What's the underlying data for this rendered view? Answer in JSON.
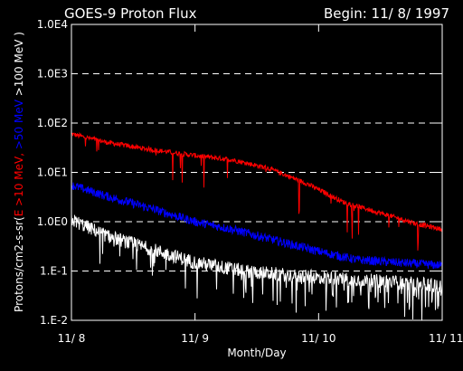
{
  "chart_data": {
    "type": "line",
    "title": "GOES-9 Proton Flux",
    "title_right": "Begin: 11/ 8/ 1997",
    "xlabel": "Month/Day",
    "ylabel_parts": [
      {
        "text": "Protons/cm2-s-sr(",
        "color": "#ffffff"
      },
      {
        "text": "E >10 MeV, ",
        "color": "#ff0000"
      },
      {
        "text": ">50 MeV ",
        "color": "#0000ff"
      },
      {
        "text": ">100 MeV )",
        "color": "#ffffff"
      }
    ],
    "y_scale": "log",
    "ylim": [
      0.01,
      10000
    ],
    "y_ticks": [
      {
        "value": 10000,
        "label": "1.0E4"
      },
      {
        "value": 1000,
        "label": "1.0E3"
      },
      {
        "value": 100,
        "label": "1.0E2"
      },
      {
        "value": 10,
        "label": "1.0E1"
      },
      {
        "value": 1,
        "label": "1.0E0"
      },
      {
        "value": 0.1,
        "label": "1.E-1"
      },
      {
        "value": 0.01,
        "label": "1.E-2"
      }
    ],
    "grid": "dashed horizontal at each decade",
    "x_range_days": [
      0,
      3
    ],
    "x_ticks": [
      {
        "value": 0,
        "label": "11/ 8"
      },
      {
        "value": 1,
        "label": "11/ 9"
      },
      {
        "value": 2,
        "label": "11/ 10"
      },
      {
        "value": 3,
        "label": "11/ 11"
      }
    ],
    "series": [
      {
        "key": "gt10",
        "color": "#ff0000",
        "noise": 0.05,
        "dips": 0.04,
        "points": [
          [
            0,
            60
          ],
          [
            0.3,
            40
          ],
          [
            0.6,
            30
          ],
          [
            1.0,
            22
          ],
          [
            1.3,
            18
          ],
          [
            1.6,
            12
          ],
          [
            1.9,
            6
          ],
          [
            2.2,
            2.5
          ],
          [
            2.5,
            1.5
          ],
          [
            2.8,
            0.9
          ],
          [
            3.0,
            0.7
          ]
        ]
      },
      {
        "key": "gt50",
        "color": "#0000ff",
        "noise": 0.09,
        "dips": 0.0,
        "points": [
          [
            0,
            5.5
          ],
          [
            0.3,
            3.2
          ],
          [
            0.6,
            2.0
          ],
          [
            1.0,
            1.0
          ],
          [
            1.3,
            0.7
          ],
          [
            1.6,
            0.45
          ],
          [
            2.0,
            0.25
          ],
          [
            2.3,
            0.17
          ],
          [
            2.6,
            0.15
          ],
          [
            3.0,
            0.13
          ]
        ]
      },
      {
        "key": "gt100",
        "color": "#ffffff",
        "noise": 0.14,
        "dips": 0.18,
        "points": [
          [
            0,
            1.1
          ],
          [
            0.3,
            0.5
          ],
          [
            0.6,
            0.3
          ],
          [
            1.0,
            0.15
          ],
          [
            1.4,
            0.1
          ],
          [
            1.8,
            0.08
          ],
          [
            2.2,
            0.07
          ],
          [
            2.6,
            0.06
          ],
          [
            3.0,
            0.05
          ]
        ]
      }
    ]
  }
}
